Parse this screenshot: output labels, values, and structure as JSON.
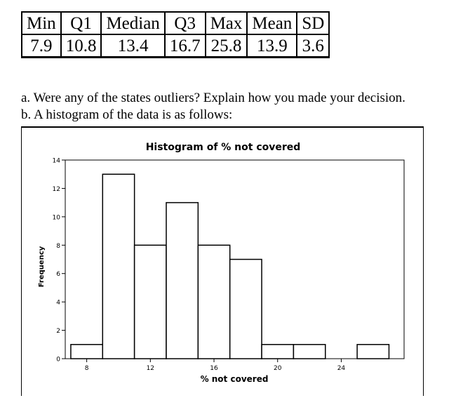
{
  "stats_table": {
    "headers": [
      "Min",
      "Q1",
      "Median",
      "Q3",
      "Max",
      "Mean",
      "SD"
    ],
    "values": [
      "7.9",
      "10.8",
      "13.4",
      "16.7",
      "25.8",
      "13.9",
      "3.6"
    ]
  },
  "questions": {
    "a": "a. Were any of the states outliers? Explain how you made your decision.",
    "b": "b. A histogram of the data is as follows:"
  },
  "chart_data": {
    "type": "bar",
    "title": "Histogram of % not covered",
    "xlabel": "% not covered",
    "ylabel": "Frequency",
    "bin_width": 2,
    "bins": [
      {
        "start": 7,
        "end": 9,
        "count": 1
      },
      {
        "start": 9,
        "end": 11,
        "count": 13
      },
      {
        "start": 11,
        "end": 13,
        "count": 8
      },
      {
        "start": 13,
        "end": 15,
        "count": 11
      },
      {
        "start": 15,
        "end": 17,
        "count": 8
      },
      {
        "start": 17,
        "end": 19,
        "count": 7
      },
      {
        "start": 19,
        "end": 21,
        "count": 1
      },
      {
        "start": 21,
        "end": 23,
        "count": 1
      },
      {
        "start": 23,
        "end": 25,
        "count": 0
      },
      {
        "start": 25,
        "end": 27,
        "count": 1
      }
    ],
    "xticks": [
      8,
      12,
      16,
      20,
      24
    ],
    "yticks": [
      0,
      2,
      4,
      6,
      8,
      10,
      12,
      14
    ],
    "ylim": [
      0,
      14
    ],
    "grid": false,
    "legend": "none"
  }
}
